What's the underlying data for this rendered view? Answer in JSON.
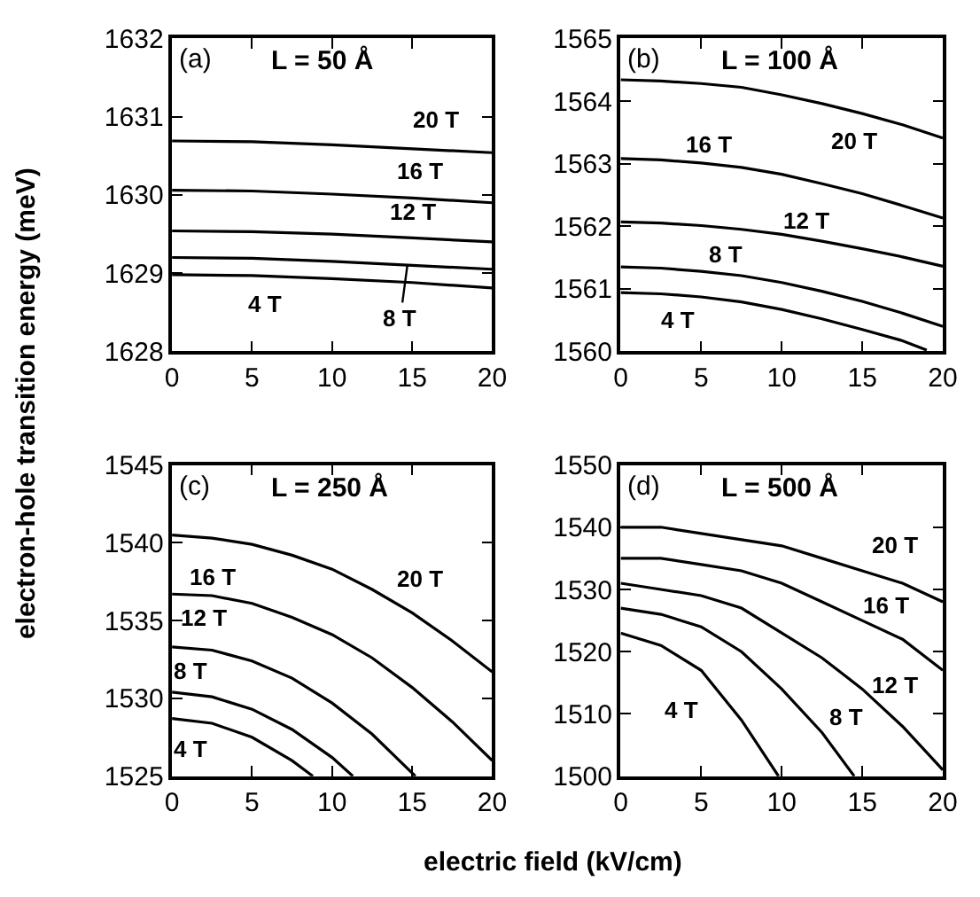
{
  "chart_data": [
    {
      "type": "line",
      "title": "L = 50 Å",
      "ylabel": "electron-hole transition energy (meV)",
      "xlim": [
        0,
        20
      ],
      "xticks": [
        0,
        5,
        10,
        15,
        20
      ],
      "ylim": [
        1628,
        1632
      ],
      "yticks": [
        1628,
        1629,
        1630,
        1631,
        1632
      ],
      "marker": "none",
      "line_style": "solid",
      "x": [
        0,
        5,
        10,
        15,
        20
      ],
      "series": [
        {
          "color": "#000000",
          "values": [
            1630.69,
            1630.68,
            1630.64,
            1630.59,
            1630.54
          ]
        },
        {
          "color": "#000000",
          "values": [
            1630.06,
            1630.05,
            1630.01,
            1629.96,
            1629.9
          ]
        },
        {
          "color": "#000000",
          "values": [
            1629.54,
            1629.53,
            1629.5,
            1629.45,
            1629.4
          ]
        },
        {
          "color": "#000000",
          "values": [
            1629.2,
            1629.19,
            1629.15,
            1629.1,
            1629.05
          ]
        },
        {
          "color": "#000000",
          "values": [
            1628.98,
            1628.97,
            1628.93,
            1628.88,
            1628.81
          ]
        }
      ],
      "annotations": [
        "(a)",
        "20 T",
        "16 T",
        "12 T",
        {
          "text": "8 T",
          "x": 14.7,
          "y": 1629.1
        },
        "4 T"
      ]
    },
    {
      "type": "line",
      "title": "L = 100 Å",
      "xlim": [
        0,
        20
      ],
      "xticks": [
        0,
        5,
        10,
        15,
        20
      ],
      "ylim": [
        1560,
        1565
      ],
      "yticks": [
        1560,
        1561,
        1562,
        1563,
        1564,
        1565
      ],
      "marker": "none",
      "line_style": "solid",
      "x": [
        0,
        2.5,
        5,
        7.5,
        10,
        12.5,
        15,
        17.5,
        20
      ],
      "series": [
        {
          "color": "#000000",
          "values": [
            1564.34,
            1564.32,
            1564.28,
            1564.22,
            1564.1,
            1563.96,
            1563.8,
            1563.62,
            1563.41
          ]
        },
        {
          "color": "#000000",
          "values": [
            1563.08,
            1563.06,
            1563.01,
            1562.94,
            1562.83,
            1562.68,
            1562.52,
            1562.33,
            1562.13
          ]
        },
        {
          "color": "#000000",
          "values": [
            1562.07,
            1562.05,
            1562.01,
            1561.95,
            1561.87,
            1561.76,
            1561.64,
            1561.51,
            1561.36
          ]
        },
        {
          "color": "#000000",
          "values": [
            1561.35,
            1561.33,
            1561.28,
            1561.21,
            1561.1,
            1560.96,
            1560.8,
            1560.61,
            1560.4
          ]
        },
        {
          "color": "#000000",
          "x": [
            0,
            2.5,
            5,
            7.5,
            10,
            12.5,
            15,
            17.5,
            19
          ],
          "values": [
            1560.94,
            1560.92,
            1560.87,
            1560.79,
            1560.67,
            1560.52,
            1560.35,
            1560.17,
            1560.02
          ]
        }
      ],
      "annotations": [
        "(b)",
        "20 T",
        "16 T",
        "12 T",
        "8 T",
        "4 T"
      ]
    },
    {
      "type": "line",
      "title": "L = 250 Å",
      "xlabel": "electric field (kV/cm)",
      "xlim": [
        0,
        20
      ],
      "xticks": [
        0,
        5,
        10,
        15,
        20
      ],
      "ylim": [
        1525,
        1545
      ],
      "yticks": [
        1525,
        1530,
        1535,
        1540,
        1545
      ],
      "marker": "none",
      "line_style": "solid",
      "x": [
        0,
        2.5,
        5,
        7.5,
        10,
        12.5,
        15,
        17.5,
        20
      ],
      "series": [
        {
          "color": "#000000",
          "values": [
            1540.5,
            1540.3,
            1539.9,
            1539.2,
            1538.3,
            1537.0,
            1535.5,
            1533.7,
            1531.7
          ]
        },
        {
          "color": "#000000",
          "values": [
            1536.7,
            1536.6,
            1536.1,
            1535.2,
            1534.1,
            1532.6,
            1530.7,
            1528.5,
            1526.0
          ]
        },
        {
          "color": "#000000",
          "x": [
            0,
            2.5,
            5,
            7.5,
            10,
            12.5,
            15,
            15.2
          ],
          "values": [
            1533.3,
            1533.1,
            1532.4,
            1531.3,
            1529.7,
            1527.7,
            1525.2,
            1525.0
          ]
        },
        {
          "color": "#000000",
          "x": [
            0,
            2.5,
            5,
            7.5,
            10,
            11.3
          ],
          "values": [
            1530.4,
            1530.1,
            1529.3,
            1528.0,
            1526.2,
            1525.0
          ]
        },
        {
          "color": "#000000",
          "x": [
            0,
            2.5,
            5,
            7.5,
            8.8
          ],
          "values": [
            1528.7,
            1528.4,
            1527.5,
            1526.0,
            1525.0
          ]
        }
      ],
      "annotations": [
        "(c)",
        "20 T",
        "16 T",
        "12 T",
        "8 T",
        "4 T"
      ]
    },
    {
      "type": "line",
      "title": "L = 500 Å",
      "xlim": [
        0,
        20
      ],
      "xticks": [
        0,
        5,
        10,
        15,
        20
      ],
      "ylim": [
        1500,
        1550
      ],
      "yticks": [
        1500,
        1510,
        1520,
        1530,
        1540,
        1550
      ],
      "marker": "none",
      "line_style": "solid",
      "x": [
        0,
        2.5,
        5,
        7.5,
        10,
        12.5,
        15,
        17.5,
        20
      ],
      "series": [
        {
          "color": "#000000",
          "values": [
            1540,
            1540,
            1539,
            1538,
            1537,
            1535,
            1533,
            1531,
            1528
          ]
        },
        {
          "color": "#000000",
          "values": [
            1535,
            1535,
            1534,
            1533,
            1531,
            1528,
            1525,
            1522,
            1517
          ]
        },
        {
          "color": "#000000",
          "values": [
            1531,
            1530,
            1529,
            1527,
            1523,
            1519,
            1514,
            1508,
            1501
          ]
        },
        {
          "color": "#000000",
          "x": [
            0,
            2.5,
            5,
            7.5,
            10,
            12.5,
            14.5
          ],
          "values": [
            1527,
            1526,
            1524,
            1520,
            1514,
            1507,
            1500
          ]
        },
        {
          "color": "#000000",
          "x": [
            0,
            2.5,
            5,
            7.5,
            9.8
          ],
          "values": [
            1523,
            1521,
            1517,
            1509,
            1500
          ]
        }
      ],
      "annotations": [
        "(d)",
        "20 T",
        "16 T",
        "12 T",
        "8 T",
        "4 T"
      ]
    }
  ]
}
